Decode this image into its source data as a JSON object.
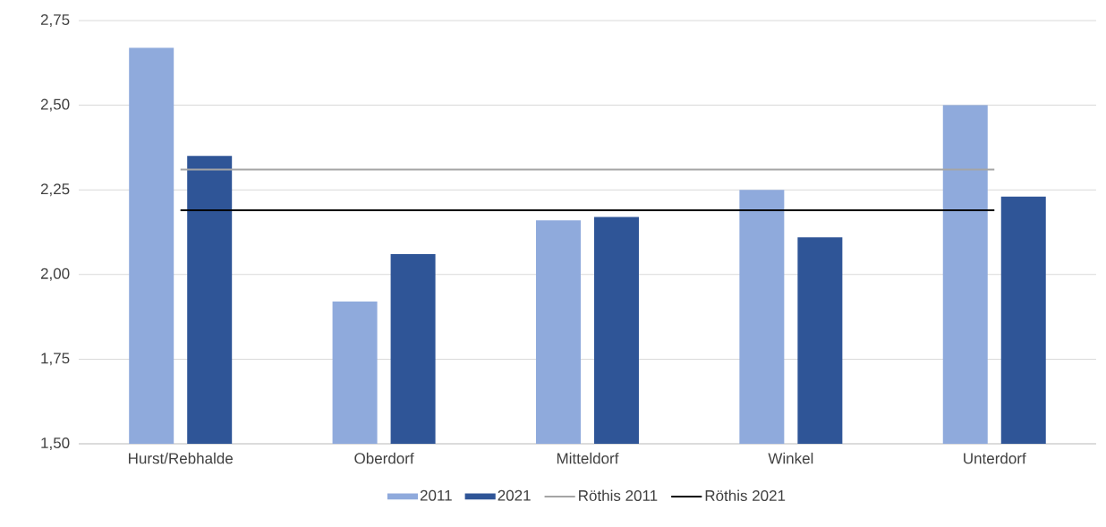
{
  "chart_data": {
    "type": "bar",
    "categories": [
      "Hurst/Rebhalde",
      "Oberdorf",
      "Mitteldorf",
      "Winkel",
      "Unterdorf"
    ],
    "series": [
      {
        "name": "2011",
        "color": "#8faadc",
        "values": [
          2.67,
          1.92,
          2.16,
          2.25,
          2.5
        ]
      },
      {
        "name": "2021",
        "color": "#2f5597",
        "values": [
          2.35,
          2.06,
          2.17,
          2.11,
          2.23
        ]
      },
      {
        "name": "Röthis 2011",
        "type": "line",
        "color": "#a5a5a5",
        "values": [
          2.31,
          2.31,
          2.31,
          2.31,
          2.31
        ]
      },
      {
        "name": "Röthis 2021",
        "type": "line",
        "color": "#000000",
        "values": [
          2.19,
          2.19,
          2.19,
          2.19,
          2.19
        ]
      }
    ],
    "ylim": [
      1.5,
      2.75
    ],
    "yticks": [
      {
        "value": 1.5,
        "label": "1,50"
      },
      {
        "value": 1.75,
        "label": "1,75"
      },
      {
        "value": 2.0,
        "label": "2,00"
      },
      {
        "value": 2.25,
        "label": "2,25"
      },
      {
        "value": 2.5,
        "label": "2,50"
      },
      {
        "value": 2.75,
        "label": "2,75"
      }
    ],
    "grid": "y",
    "legend": "bottom"
  }
}
